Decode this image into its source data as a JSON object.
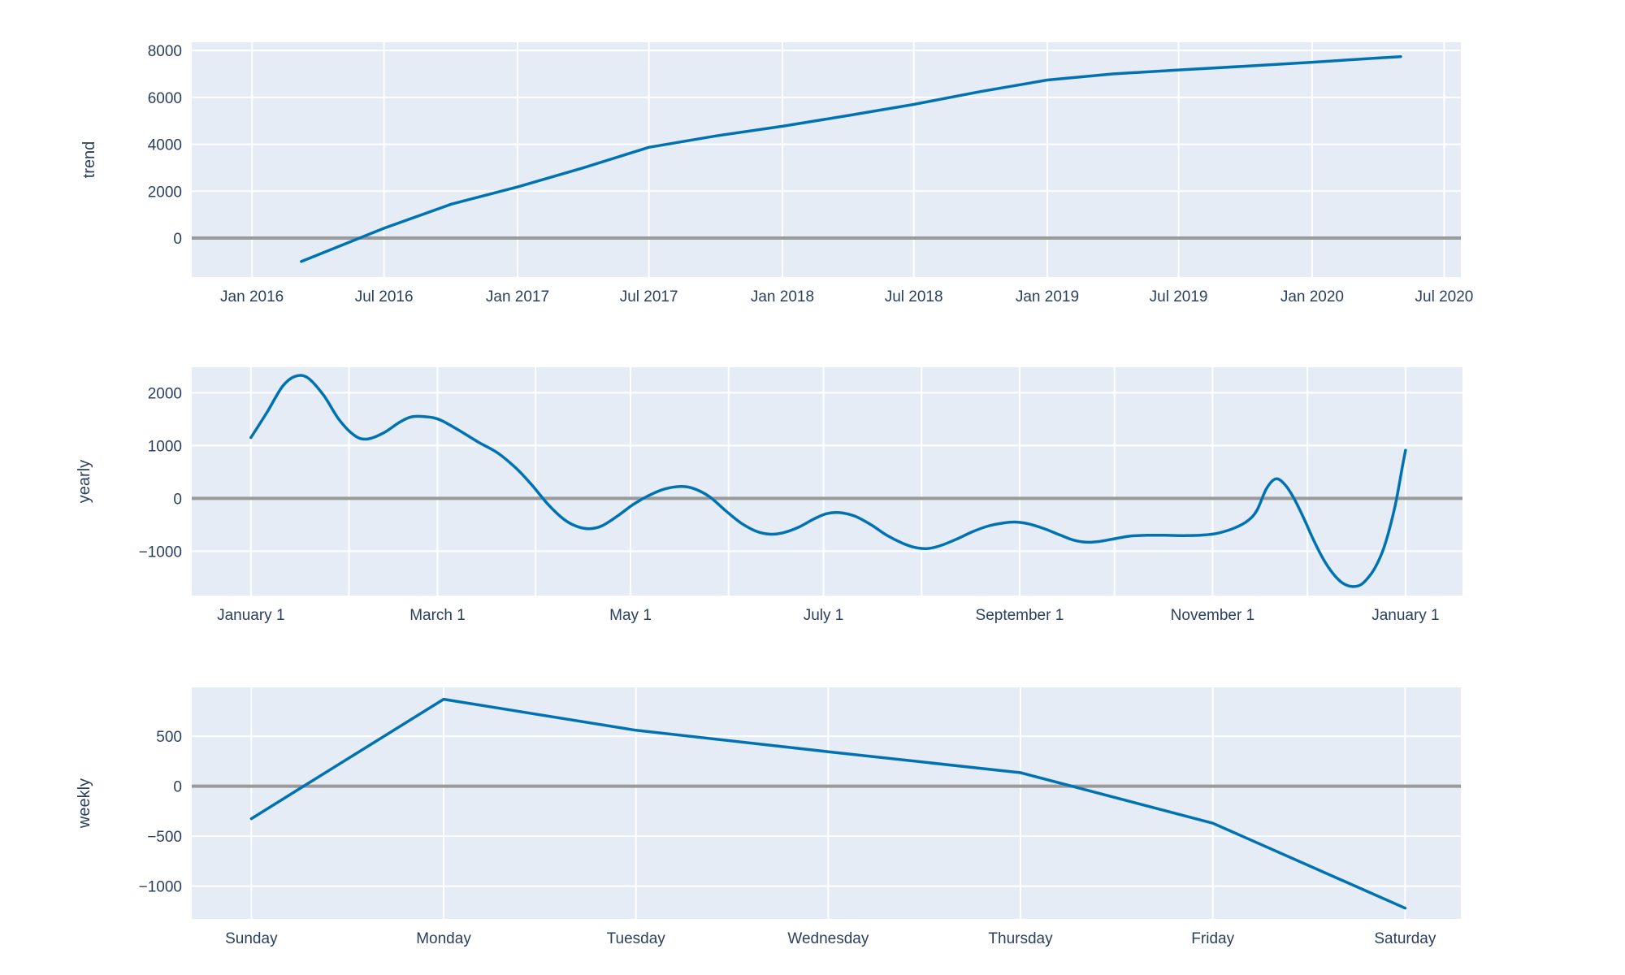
{
  "style": {
    "background": "#ffffff",
    "plot_background": "#e5ecf6",
    "grid_color": "#ffffff",
    "zero_line_color": "#9a9a9a",
    "line_color": "#0072b2",
    "text_color": "#2a3f5f"
  },
  "chart_data": [
    {
      "type": "line",
      "name": "trend",
      "title": "",
      "xlabel": "",
      "ylabel": "trend",
      "legend": "none",
      "grid": "on",
      "x_unit": "days since 2016-01-01",
      "x_domain": [
        -83,
        1666
      ],
      "y_domain": [
        -1664,
        8353
      ],
      "x_ticks": [
        {
          "v": 0,
          "label": "Jan 2016"
        },
        {
          "v": 182,
          "label": "Jul 2016"
        },
        {
          "v": 366,
          "label": "Jan 2017"
        },
        {
          "v": 547,
          "label": "Jul 2017"
        },
        {
          "v": 731,
          "label": "Jan 2018"
        },
        {
          "v": 912,
          "label": "Jul 2018"
        },
        {
          "v": 1096,
          "label": "Jan 2019"
        },
        {
          "v": 1277,
          "label": "Jul 2019"
        },
        {
          "v": 1461,
          "label": "Jan 2020"
        },
        {
          "v": 1643,
          "label": "Jul 2020"
        }
      ],
      "y_ticks": [
        {
          "v": 0,
          "label": "0"
        },
        {
          "v": 2000,
          "label": "2000"
        },
        {
          "v": 4000,
          "label": "4000"
        },
        {
          "v": 6000,
          "label": "6000"
        },
        {
          "v": 8000,
          "label": "8000"
        }
      ],
      "x_grid_minor": [],
      "smooth": false,
      "series": {
        "x": [
          68,
          182,
          275,
          366,
          457,
          547,
          640,
          731,
          822,
          912,
          1004,
          1096,
          1186,
          1277,
          1369,
          1461,
          1552,
          1583
        ],
        "y": [
          -1000,
          420,
          1450,
          2180,
          3000,
          3870,
          4360,
          4770,
          5230,
          5700,
          6250,
          6740,
          7000,
          7170,
          7330,
          7500,
          7680,
          7740
        ]
      }
    },
    {
      "type": "line",
      "name": "yearly",
      "title": "",
      "xlabel": "",
      "ylabel": "yearly",
      "legend": "none",
      "grid": "on",
      "x_unit": "day of year",
      "x_domain": [
        -18.7,
        383
      ],
      "y_domain": [
        -1841,
        2482
      ],
      "x_ticks": [
        {
          "v": 0,
          "label": "January  1"
        },
        {
          "v": 59,
          "label": "March  1"
        },
        {
          "v": 120,
          "label": "May  1"
        },
        {
          "v": 181,
          "label": "July  1"
        },
        {
          "v": 243,
          "label": "September  1"
        },
        {
          "v": 304,
          "label": "November  1"
        },
        {
          "v": 365,
          "label": "January  1"
        }
      ],
      "y_ticks": [
        {
          "v": -1000,
          "label": "−1000"
        },
        {
          "v": 0,
          "label": "0"
        },
        {
          "v": 1000,
          "label": "1000"
        },
        {
          "v": 2000,
          "label": "2000"
        }
      ],
      "x_grid_minor": [
        31,
        90,
        151,
        212,
        273,
        334
      ],
      "smooth": true,
      "series": {
        "x": [
          0,
          5,
          10,
          14,
          18,
          23,
          28,
          33,
          37,
          42,
          47,
          51,
          56,
          60,
          66,
          72,
          78,
          84,
          89,
          94,
          99,
          103,
          107,
          111,
          116,
          121,
          126,
          131,
          136,
          140,
          145,
          150,
          155,
          160,
          164,
          168,
          173,
          178,
          182,
          186,
          191,
          196,
          201,
          206,
          210,
          214,
          218,
          223,
          228,
          233,
          238,
          242,
          246,
          251,
          256,
          260,
          264,
          268,
          273,
          278,
          283,
          289,
          295,
          301,
          306,
          311,
          315,
          318,
          321,
          324,
          327,
          330,
          333,
          336,
          339,
          342,
          345,
          348,
          351,
          354,
          356,
          358,
          360,
          362,
          364,
          365
        ],
        "y": [
          1150,
          1620,
          2120,
          2310,
          2280,
          1950,
          1480,
          1180,
          1125,
          1240,
          1440,
          1545,
          1540,
          1480,
          1280,
          1060,
          860,
          560,
          240,
          -120,
          -400,
          -530,
          -575,
          -520,
          -330,
          -110,
          60,
          180,
          225,
          185,
          30,
          -230,
          -470,
          -630,
          -678,
          -655,
          -550,
          -390,
          -290,
          -270,
          -340,
          -500,
          -700,
          -850,
          -930,
          -950,
          -895,
          -775,
          -635,
          -525,
          -465,
          -450,
          -485,
          -580,
          -700,
          -790,
          -830,
          -818,
          -765,
          -715,
          -700,
          -700,
          -705,
          -695,
          -655,
          -560,
          -430,
          -230,
          180,
          370,
          250,
          -30,
          -400,
          -800,
          -1150,
          -1420,
          -1600,
          -1668,
          -1630,
          -1440,
          -1240,
          -960,
          -560,
          -60,
          600,
          912
        ]
      }
    },
    {
      "type": "line",
      "name": "weekly",
      "title": "",
      "xlabel": "",
      "ylabel": "weekly",
      "legend": "none",
      "grid": "on",
      "x_unit": "day of week",
      "x_domain": [
        -0.31,
        6.29
      ],
      "y_domain": [
        -1328,
        989
      ],
      "x_ticks": [
        {
          "v": 0,
          "label": "Sunday"
        },
        {
          "v": 1,
          "label": "Monday"
        },
        {
          "v": 2,
          "label": "Tuesday"
        },
        {
          "v": 3,
          "label": "Wednesday"
        },
        {
          "v": 4,
          "label": "Thursday"
        },
        {
          "v": 5,
          "label": "Friday"
        },
        {
          "v": 6,
          "label": "Saturday"
        }
      ],
      "y_ticks": [
        {
          "v": -1000,
          "label": "−1000"
        },
        {
          "v": -500,
          "label": "−500"
        },
        {
          "v": 0,
          "label": "0"
        },
        {
          "v": 500,
          "label": "500"
        }
      ],
      "x_grid_minor": [],
      "smooth": false,
      "series": {
        "x": [
          0,
          1,
          2,
          3,
          4,
          5,
          6
        ],
        "y": [
          -325,
          870,
          560,
          345,
          135,
          -370,
          -1220
        ]
      }
    }
  ]
}
